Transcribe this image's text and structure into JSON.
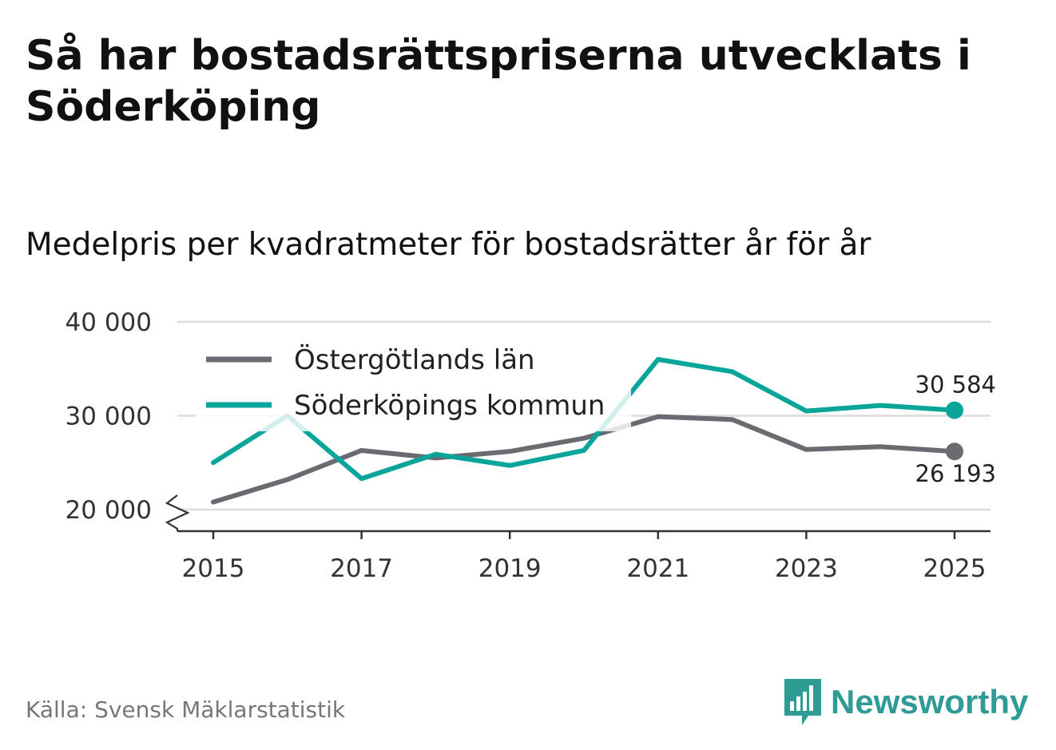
{
  "title": "Så har bostadsrättspriserna utvecklats i Söderköping",
  "subtitle": "Medelpris per kvadratmeter för bostadsrätter år för år",
  "source": "Källa: Svensk Mäklarstatistik",
  "brand": {
    "name": "Newsworthy",
    "color": "#2e9b94"
  },
  "chart_data": {
    "type": "line",
    "x": [
      2015,
      2016,
      2017,
      2018,
      2019,
      2020,
      2021,
      2022,
      2023,
      2024,
      2025
    ],
    "xticks": [
      "2015",
      "2017",
      "2019",
      "2021",
      "2023",
      "2025"
    ],
    "yticks": [
      "20 000",
      "30 000",
      "40 000"
    ],
    "ylim": [
      20000,
      40000
    ],
    "y_axis_break": true,
    "legend_position": "top-left",
    "series": [
      {
        "name": "Östergötlands län",
        "color": "#6b6a70",
        "values": [
          20800,
          23200,
          26300,
          25500,
          26200,
          27600,
          29900,
          29600,
          26400,
          26700,
          26193
        ],
        "end_label": "26 193"
      },
      {
        "name": "Söderköpings kommun",
        "color": "#0aa59a",
        "values": [
          25000,
          30000,
          23300,
          25900,
          24700,
          26300,
          36000,
          34700,
          30500,
          31100,
          30584
        ],
        "end_label": "30 584"
      }
    ]
  }
}
